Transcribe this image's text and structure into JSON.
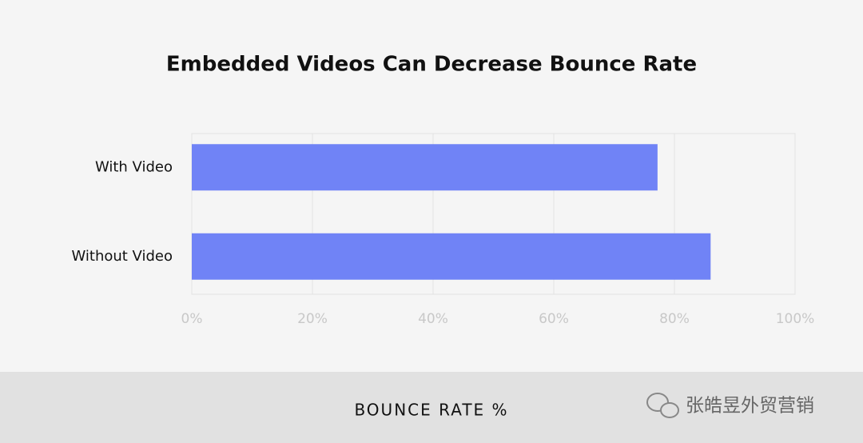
{
  "chart_data": {
    "type": "bar",
    "orientation": "horizontal",
    "title": "Embedded Videos Can Decrease Bounce Rate",
    "categories": [
      "With Video",
      "Without Video"
    ],
    "values": [
      77.2,
      86.0
    ],
    "color": "#7083f6",
    "xlim": [
      0,
      100
    ],
    "xticks": [
      {
        "value": 0,
        "label": "0%"
      },
      {
        "value": 20,
        "label": "20%"
      },
      {
        "value": 40,
        "label": "40%"
      },
      {
        "value": 60,
        "label": "60%"
      },
      {
        "value": 80,
        "label": "80%"
      },
      {
        "value": 100,
        "label": "100%"
      }
    ],
    "grid": true,
    "xlabel": "BOUNCE RATE %",
    "watermark": "张皓昱外贸营销"
  }
}
